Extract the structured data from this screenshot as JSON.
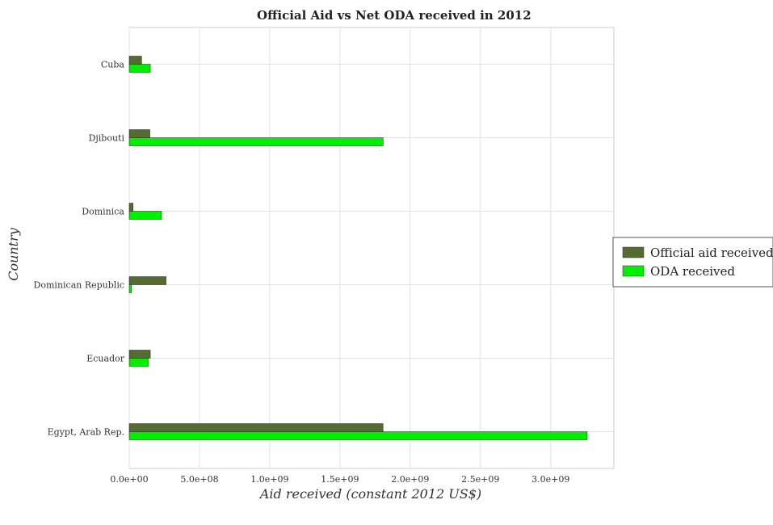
{
  "chart_data": {
    "type": "bar",
    "orientation": "horizontal",
    "title": "Official Aid vs Net ODA received in 2012",
    "xlabel": "Aid received (constant 2012 US$)",
    "ylabel": "Country",
    "categories": [
      "Cuba",
      "Djibouti",
      "Dominica",
      "Dominican Republic",
      "Ecuador",
      "Egypt, Arab Rep."
    ],
    "series": [
      {
        "name": "Official aid received",
        "color": "#556b2f",
        "values": [
          88000000,
          147000000,
          27000000,
          262000000,
          150000000,
          1807000000
        ]
      },
      {
        "name": "ODA received",
        "color": "#00ee00",
        "values": [
          150000000,
          1807000000,
          230000000,
          15000000,
          135000000,
          3260000000
        ]
      }
    ],
    "xlim": [
      0,
      3450000000
    ],
    "xticks": [
      0,
      500000000,
      1000000000,
      1500000000,
      2000000000,
      2500000000,
      3000000000
    ],
    "xtick_labels": [
      "0.0e+00",
      "5.0e+08",
      "1.0e+09",
      "1.5e+09",
      "2.0e+09",
      "2.5e+09",
      "3.0e+09"
    ],
    "grid": true,
    "legend_position": "right"
  }
}
